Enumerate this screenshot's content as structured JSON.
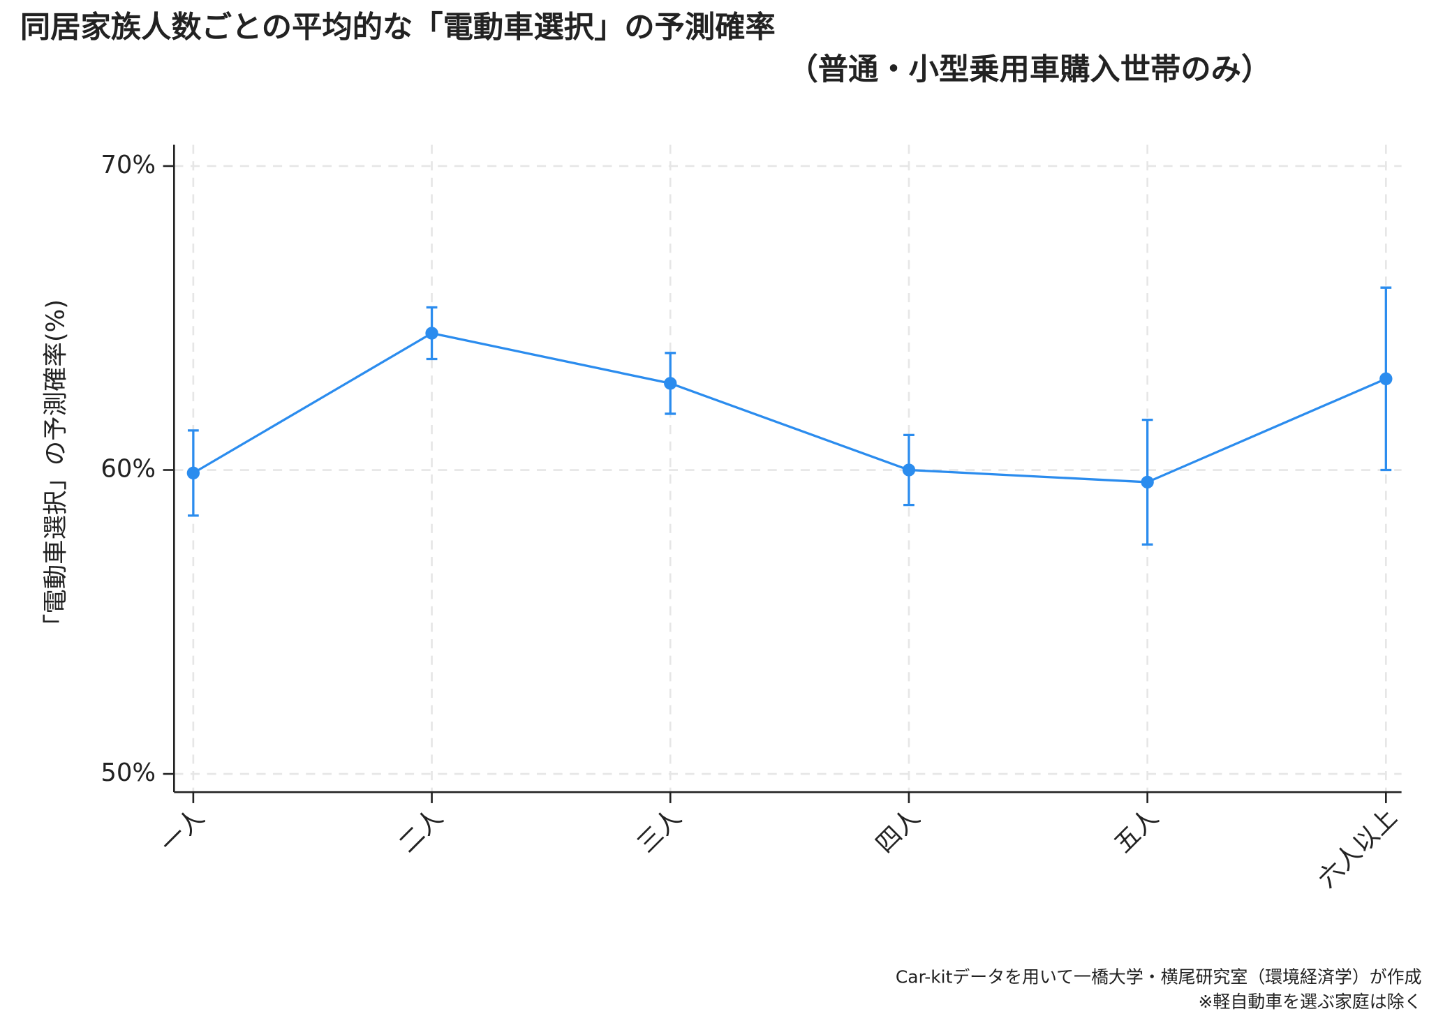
{
  "chart_data": {
    "type": "line",
    "title": "同居家族人数ごとの平均的な「電動車選択」の予測確率",
    "subtitle": "（普通・小型乗用車購入世帯のみ）",
    "y_label": "「電動車選択」の予測確率(%)",
    "notes": [
      "Car-kitデータを用いて一橋大学・横尾研究室（環境経済学）が作成",
      "※軽自動車を選ぶ家庭は除く"
    ],
    "categories": [
      "一人",
      "二人",
      "三人",
      "四人",
      "五人",
      "六人以上"
    ],
    "series": [
      {
        "color": "#2b8cee",
        "values": [
          59.9,
          64.5,
          62.85,
          60.0,
          59.6,
          63.0
        ],
        "errors": [
          1.4,
          0.85,
          1.0,
          1.15,
          2.05,
          3.0
        ]
      }
    ],
    "ylim": [
      49.4,
      70.7
    ],
    "yticks": [
      {
        "value": 50,
        "label": "50%"
      },
      {
        "value": 60,
        "label": "60%"
      },
      {
        "value": 70,
        "label": "70%"
      }
    ],
    "grid": true
  }
}
